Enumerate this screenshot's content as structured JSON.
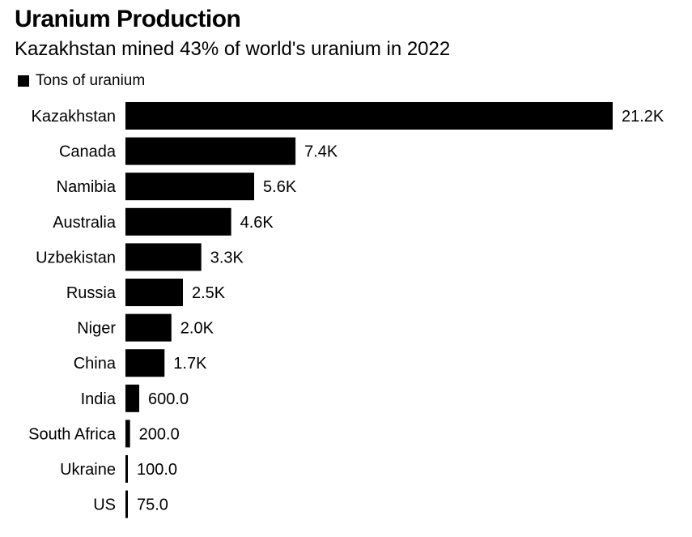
{
  "chart_data": {
    "type": "bar",
    "orientation": "horizontal",
    "title": "Uranium Production",
    "subtitle": "Kazakhstan mined 43% of world's uranium in 2022",
    "legend_position": "top-left",
    "grid": false,
    "bar_color": "#000000",
    "xlim": [
      0,
      21200
    ],
    "series": [
      {
        "name": "Tons of uranium",
        "values": [
          21200,
          7400,
          5600,
          4600,
          3300,
          2500,
          2000,
          1700,
          600,
          200,
          100,
          75
        ],
        "labels": [
          "21.2K",
          "7.4K",
          "5.6K",
          "4.6K",
          "3.3K",
          "2.5K",
          "2.0K",
          "1.7K",
          "600.0",
          "200.0",
          "100.0",
          "75.0"
        ]
      }
    ],
    "categories": [
      "Kazakhstan",
      "Canada",
      "Namibia",
      "Australia",
      "Uzbekistan",
      "Russia",
      "Niger",
      "China",
      "India",
      "South Africa",
      "Ukraine",
      "US"
    ]
  }
}
